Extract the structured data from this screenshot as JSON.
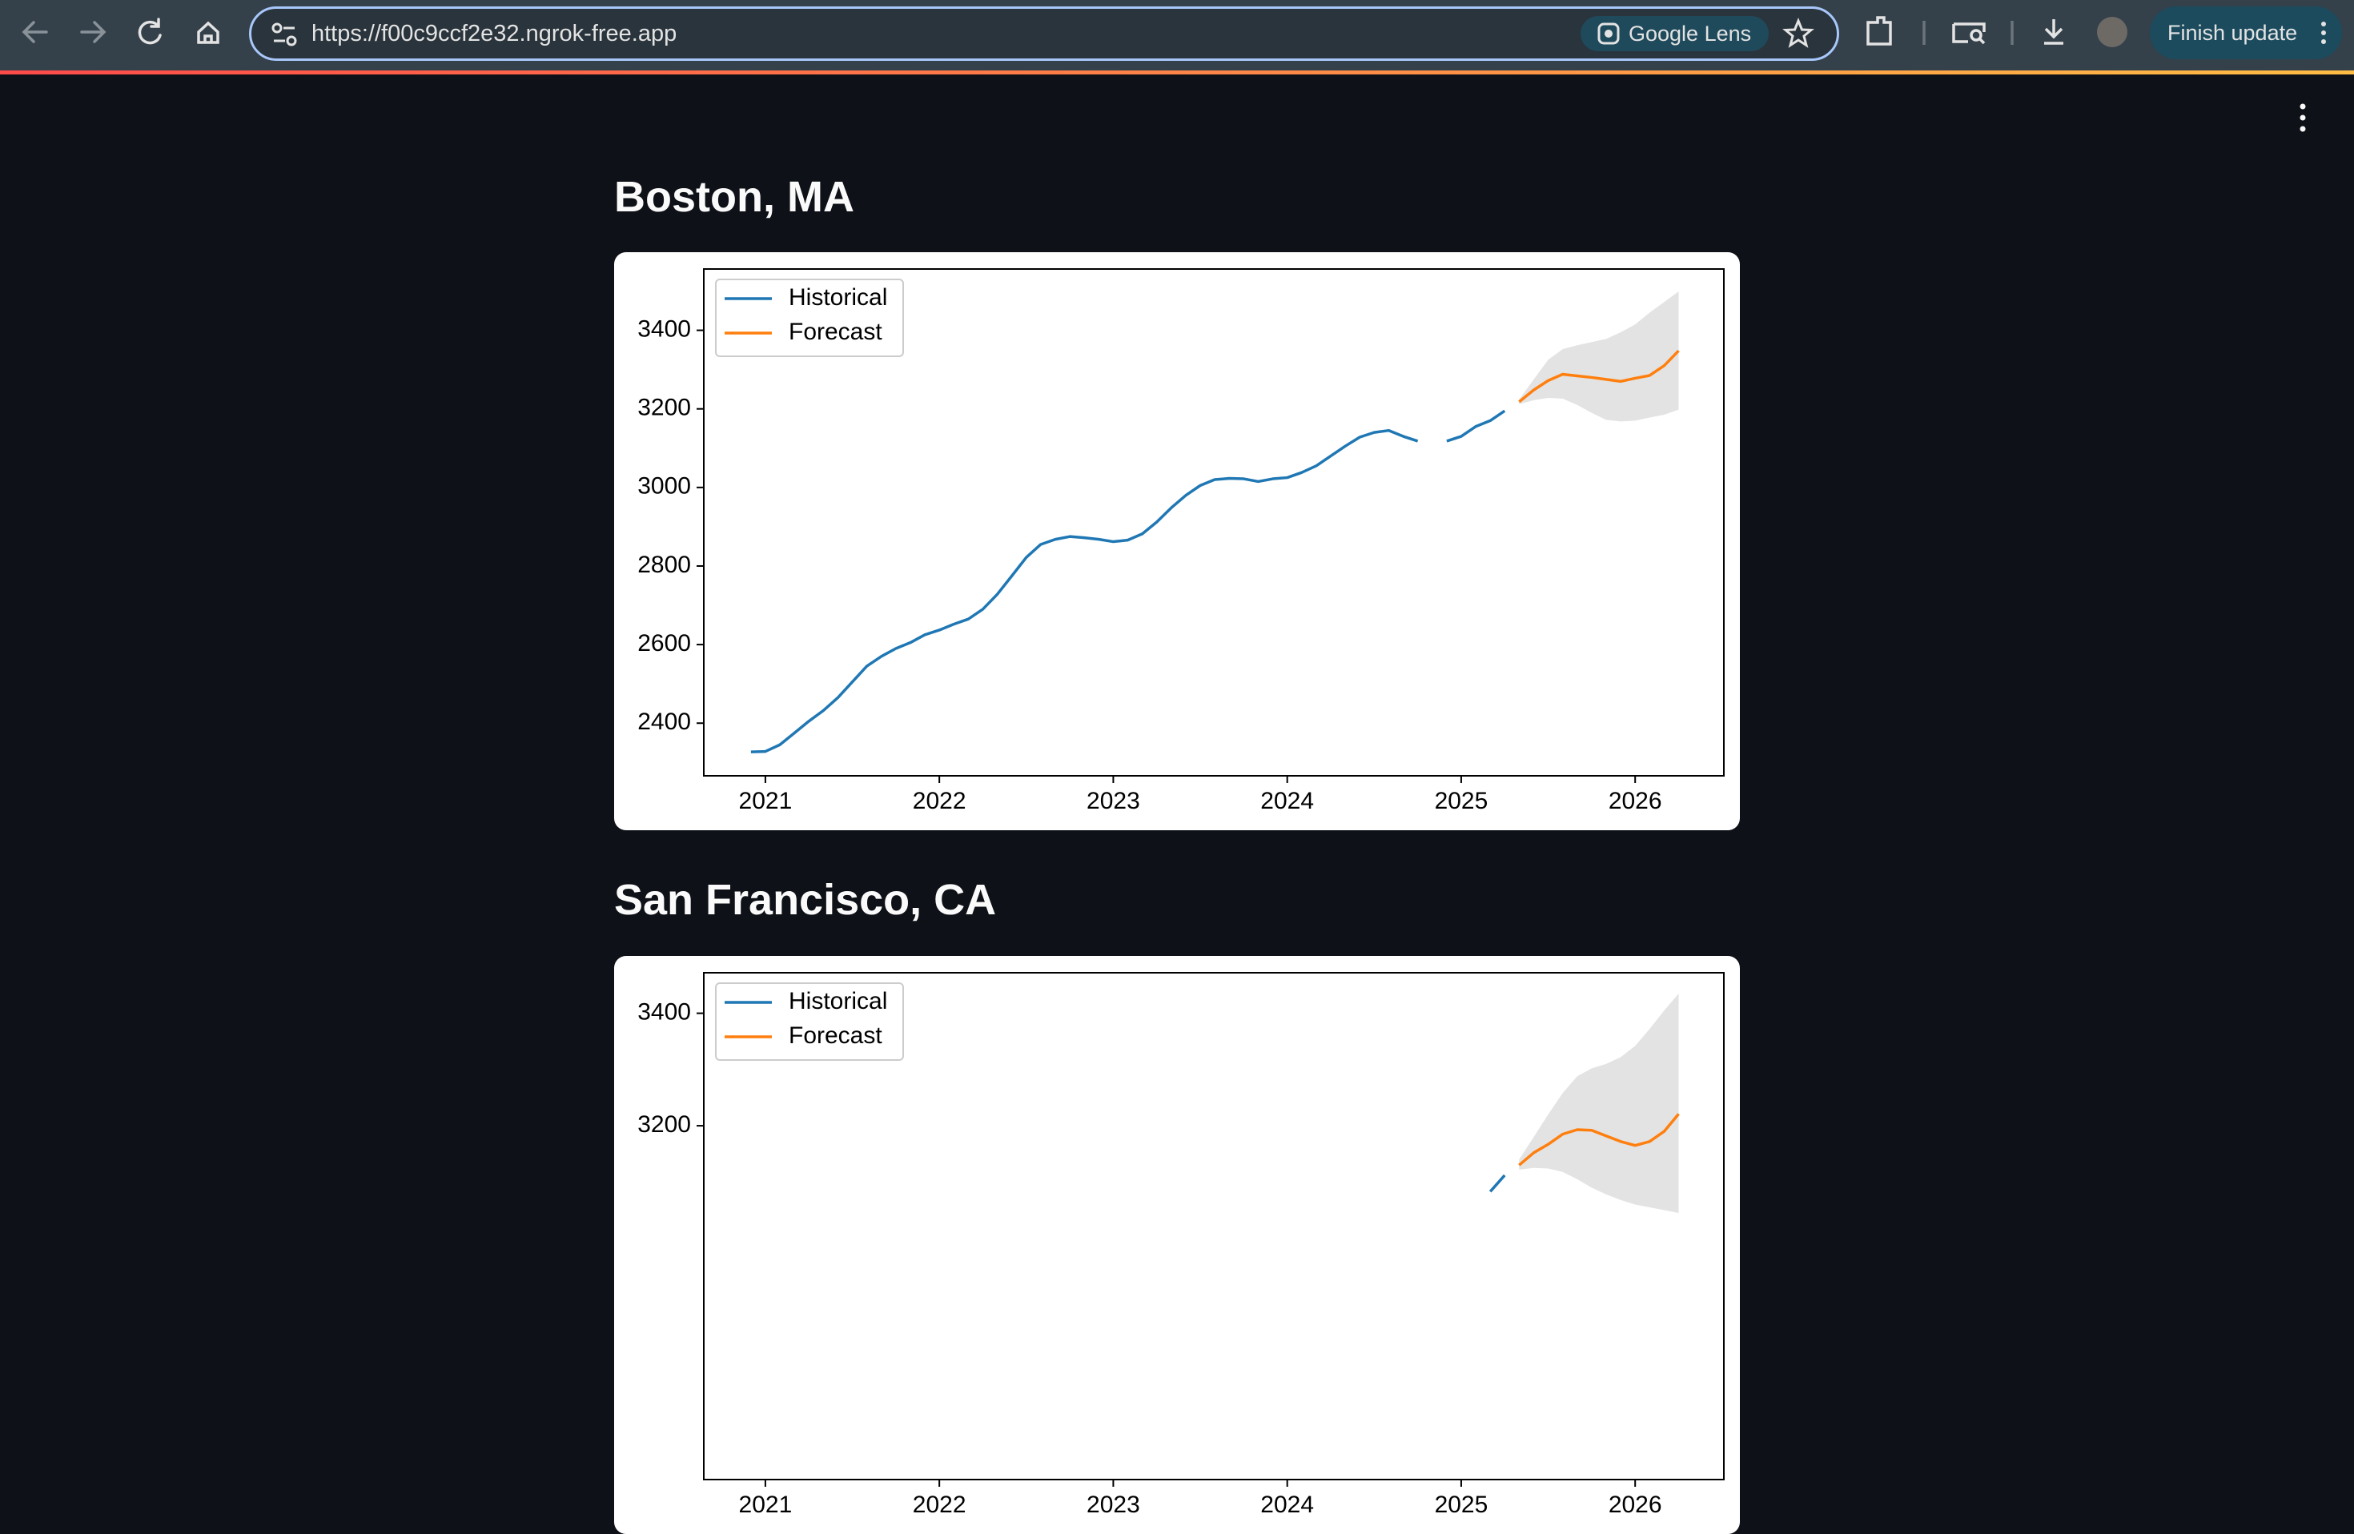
{
  "browser": {
    "url": "https://f00c9ccf2e32.ngrok-free.app",
    "lens_label": "Google Lens",
    "update_button": "Finish update"
  },
  "chart_data": [
    {
      "type": "line",
      "title": "Boston, MA",
      "legend": "upper left",
      "xlim": [
        2020.646,
        2026.51
      ],
      "xticks": [
        2021,
        2022,
        2023,
        2024,
        2025,
        2026
      ],
      "ylim": [
        2266,
        3556
      ],
      "yticks": [
        2400,
        2600,
        2800,
        3000,
        3200,
        3400
      ],
      "series": [
        {
          "name": "Historical",
          "color": "#1f77b4",
          "x": [
            2020.917,
            2021.0,
            2021.083,
            2021.167,
            2021.25,
            2021.333,
            2021.417,
            2021.5,
            2021.583,
            2021.667,
            2021.75,
            2021.833,
            2021.917,
            2022.0,
            2022.083,
            2022.167,
            2022.25,
            2022.333,
            2022.417,
            2022.5,
            2022.583,
            2022.667,
            2022.75,
            2022.833,
            2022.917,
            2023.0,
            2023.083,
            2023.167,
            2023.25,
            2023.333,
            2023.417,
            2023.5,
            2023.583,
            2023.667,
            2023.75,
            2023.833,
            2023.917,
            2024.0,
            2024.083,
            2024.167,
            2024.25,
            2024.333,
            2024.417,
            2024.5,
            2024.583,
            2024.667,
            2024.75,
            2024.833,
            2024.917,
            2025.0,
            2025.083,
            2025.167,
            2025.25
          ],
          "values": [
            2327,
            2328,
            2345,
            2375,
            2405,
            2432,
            2465,
            2505,
            2545,
            2570,
            2590,
            2605,
            2625,
            2637,
            2652,
            2665,
            2690,
            2728,
            2775,
            2822,
            2855,
            2868,
            2875,
            2872,
            2868,
            2862,
            2866,
            2882,
            2912,
            2948,
            2980,
            3005,
            3020,
            3023,
            3022,
            3015,
            3022,
            3025,
            3038,
            3055,
            3080,
            3105,
            3128,
            3140,
            3145,
            3130,
            3118,
            null,
            3118,
            3130,
            3155,
            3170,
            3195
          ]
        },
        {
          "name": "Forecast",
          "color": "#ff7f0e",
          "band_color": "#e3e3e3",
          "x": [
            2025.333,
            2025.417,
            2025.5,
            2025.583,
            2025.667,
            2025.75,
            2025.833,
            2025.917,
            2026.0,
            2026.083,
            2026.167,
            2026.25
          ],
          "values": [
            3218,
            3248,
            3272,
            3288,
            3284,
            3280,
            3275,
            3270,
            3278,
            3285,
            3310,
            3348
          ],
          "lower": [
            3212,
            3222,
            3228,
            3226,
            3210,
            3190,
            3172,
            3168,
            3170,
            3178,
            3185,
            3198
          ],
          "upper": [
            3224,
            3275,
            3325,
            3352,
            3362,
            3370,
            3378,
            3395,
            3415,
            3445,
            3472,
            3499
          ]
        }
      ]
    },
    {
      "type": "line",
      "title": "San Francisco, CA",
      "legend": "upper left",
      "xlim": [
        2020.646,
        2026.51
      ],
      "xticks": [
        2021,
        2022,
        2023,
        2024,
        2025,
        2026
      ],
      "ylim": [
        2571,
        3472
      ],
      "yticks": [
        3200,
        3400
      ],
      "series": [
        {
          "name": "Historical",
          "color": "#1f77b4",
          "x": [
            2025.167,
            2025.25
          ],
          "values": [
            3083,
            3112
          ]
        },
        {
          "name": "Forecast",
          "color": "#ff7f0e",
          "band_color": "#e3e3e3",
          "x": [
            2025.333,
            2025.417,
            2025.5,
            2025.583,
            2025.667,
            2025.75,
            2025.833,
            2025.917,
            2026.0,
            2026.083,
            2026.167,
            2026.25
          ],
          "values": [
            3130,
            3152,
            3167,
            3185,
            3193,
            3192,
            3182,
            3172,
            3165,
            3172,
            3190,
            3221
          ],
          "lower": [
            3122,
            3125,
            3124,
            3118,
            3105,
            3090,
            3078,
            3068,
            3060,
            3055,
            3050,
            3045
          ],
          "upper": [
            3140,
            3180,
            3220,
            3258,
            3288,
            3302,
            3310,
            3322,
            3342,
            3372,
            3405,
            3435
          ]
        }
      ]
    }
  ]
}
